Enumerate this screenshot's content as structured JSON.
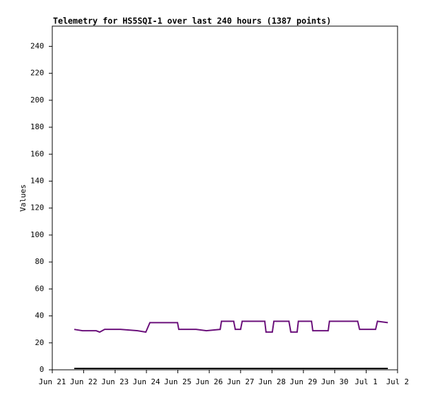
{
  "chart_data": {
    "type": "line",
    "title": "Telemetry for HS5SQI-1 over last 240 hours (1387 points)",
    "y_label": "Values",
    "xlim": [
      0,
      11
    ],
    "xticks": [
      {
        "value": 0,
        "label": "Jun 21"
      },
      {
        "value": 1,
        "label": "Jun 22"
      },
      {
        "value": 2,
        "label": "Jun 23"
      },
      {
        "value": 3,
        "label": "Jun 24"
      },
      {
        "value": 4,
        "label": "Jun 25"
      },
      {
        "value": 5,
        "label": "Jun 26"
      },
      {
        "value": 6,
        "label": "Jun 27"
      },
      {
        "value": 7,
        "label": "Jun 28"
      },
      {
        "value": 8,
        "label": "Jun 29"
      },
      {
        "value": 9,
        "label": "Jun 30"
      },
      {
        "value": 10,
        "label": "Jul 1"
      },
      {
        "value": 11,
        "label": "Jul 2"
      }
    ],
    "ylim": [
      0,
      255
    ],
    "yticks": [
      0,
      20,
      40,
      60,
      80,
      100,
      120,
      140,
      160,
      180,
      200,
      220,
      240
    ],
    "series": [
      {
        "color": "#6a0f7a",
        "x": [
          0.7,
          0.96,
          1.4,
          1.51,
          1.67,
          2.17,
          2.72,
          2.98,
          3.11,
          3.99,
          4.03,
          4.58,
          4.91,
          5.35,
          5.39,
          5.78,
          5.83,
          6.0,
          6.05,
          6.77,
          6.81,
          7.01,
          7.06,
          7.54,
          7.6,
          7.8,
          7.84,
          8.26,
          8.3,
          8.79,
          8.83,
          9.73,
          9.79,
          10.3,
          10.36,
          10.69
        ],
        "values": [
          30,
          29,
          29,
          28,
          30,
          30,
          29,
          28,
          35,
          35,
          30,
          30,
          29,
          30,
          36,
          36,
          30,
          30,
          36,
          36,
          28,
          28,
          36,
          36,
          28,
          28,
          36,
          36,
          29,
          29,
          36,
          36,
          30,
          30,
          36,
          35
        ]
      },
      {
        "color": "#000000",
        "x": [
          0.7,
          10.69
        ],
        "values": [
          1,
          1
        ]
      }
    ]
  }
}
